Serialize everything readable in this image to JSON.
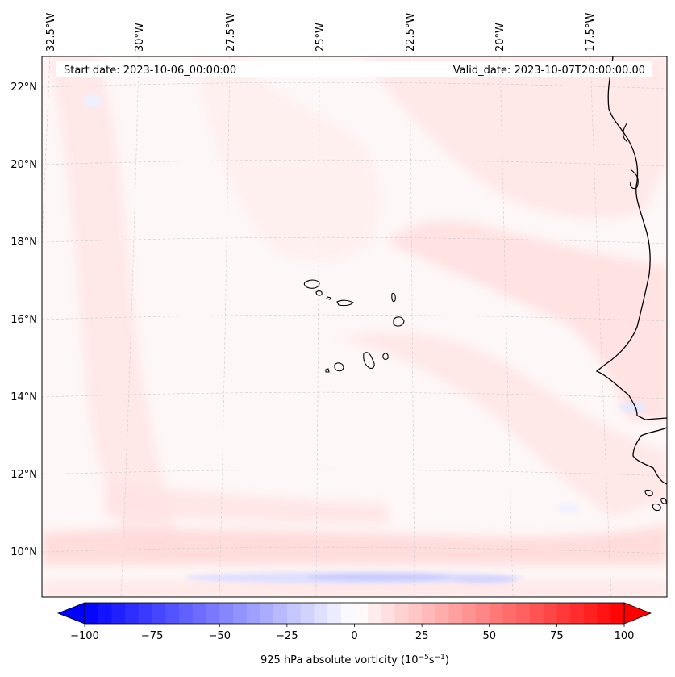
{
  "header": {
    "start_date": "Start date: 2023-10-06_00:00:00",
    "valid_date": "Valid_date: 2023-10-07T20:00:00.00"
  },
  "map": {
    "projection": "lambert-conformal",
    "extent": {
      "lon_min": -32.5,
      "lon_max": -15.6,
      "lat_min": 9.0,
      "lat_max": 22.8
    },
    "lon_ticks": [
      "32.5°W",
      "30°W",
      "27.5°W",
      "25°W",
      "22.5°W",
      "20°W",
      "17.5°W"
    ],
    "lat_ticks": [
      "22°N",
      "20°N",
      "18°N",
      "16°N",
      "14°N",
      "12°N",
      "10°N"
    ],
    "features": [
      "cape-verde-islands",
      "west-african-coastline"
    ]
  },
  "colorbar": {
    "label": "925 hPa absolute vorticity (10",
    "label_exp1": "−5",
    "label_mid": "s",
    "label_exp2": "−1",
    "label_end": ")",
    "min": -100,
    "max": 100,
    "levels": 41,
    "tick_values": [
      -100,
      -75,
      -50,
      -25,
      0,
      25,
      50,
      75,
      100
    ],
    "tick_labels": [
      "−100",
      "−75",
      "−50",
      "−25",
      "0",
      "25",
      "50",
      "75",
      "100"
    ],
    "cmap": "bwr",
    "colors": {
      "neg": "#0000ff",
      "mid": "#ffffff",
      "pos": "#ff0000"
    }
  }
}
